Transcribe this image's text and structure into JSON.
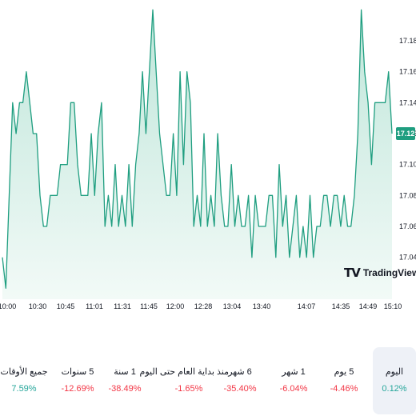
{
  "chart_data": {
    "type": "area",
    "title": "",
    "xlabel": "",
    "ylabel": "",
    "ylim": [
      17.015,
      17.195
    ],
    "current_price": "17.12",
    "y_ticks": [
      "17.18",
      "17.16",
      "17.14",
      "17.12",
      "17.10",
      "17.08",
      "17.06",
      "17.04"
    ],
    "x_ticks": [
      "10:00",
      "10:30",
      "10:45",
      "11:01",
      "11:31",
      "11:45",
      "12:00",
      "12:28",
      "13:04",
      "13:40",
      "14:07",
      "14:35",
      "14:49",
      "15:10"
    ],
    "values": [
      17.04,
      17.02,
      17.08,
      17.14,
      17.12,
      17.14,
      17.14,
      17.16,
      17.14,
      17.12,
      17.12,
      17.08,
      17.06,
      17.06,
      17.08,
      17.08,
      17.08,
      17.1,
      17.1,
      17.1,
      17.14,
      17.14,
      17.1,
      17.08,
      17.08,
      17.08,
      17.12,
      17.08,
      17.12,
      17.14,
      17.06,
      17.08,
      17.06,
      17.1,
      17.06,
      17.08,
      17.06,
      17.1,
      17.06,
      17.1,
      17.12,
      17.16,
      17.12,
      17.16,
      17.2,
      17.16,
      17.12,
      17.1,
      17.08,
      17.08,
      17.12,
      17.08,
      17.16,
      17.1,
      17.16,
      17.14,
      17.06,
      17.08,
      17.06,
      17.12,
      17.06,
      17.08,
      17.06,
      17.12,
      17.08,
      17.06,
      17.06,
      17.1,
      17.06,
      17.08,
      17.06,
      17.06,
      17.08,
      17.04,
      17.08,
      17.06,
      17.06,
      17.06,
      17.08,
      17.08,
      17.04,
      17.1,
      17.06,
      17.08,
      17.04,
      17.06,
      17.08,
      17.04,
      17.06,
      17.04,
      17.08,
      17.04,
      17.06,
      17.06,
      17.08,
      17.08,
      17.06,
      17.08,
      17.08,
      17.06,
      17.08,
      17.06,
      17.06,
      17.08,
      17.12,
      17.2,
      17.16,
      17.14,
      17.1,
      17.14,
      17.14,
      17.14,
      17.14,
      17.16,
      17.12
    ],
    "watermark": "TradingView",
    "colors": {
      "line": "#1f9e80",
      "area_top": "#bfe6da",
      "area_bottom": "#f2faf7",
      "badge": "#1f9e80"
    }
  },
  "periods": [
    {
      "label": "اليوم",
      "value": "0.12%",
      "color": "#26a69a",
      "active": true
    },
    {
      "label": "5 يوم",
      "value": "4.46%-",
      "color": "#f23645",
      "active": false
    },
    {
      "label": "1 شهر",
      "value": "6.04%-",
      "color": "#f23645",
      "active": false
    },
    {
      "label": "6 شهر",
      "value": "35.40%-",
      "color": "#f23645",
      "active": false
    },
    {
      "label": "منذ بداية العام حتى اليوم",
      "value": "1.65%-",
      "color": "#f23645",
      "active": false
    },
    {
      "label": "1 سنة",
      "value": "38.49%-",
      "color": "#f23645",
      "active": false
    },
    {
      "label": "5 سنوات",
      "value": "12.69%-",
      "color": "#f23645",
      "active": false
    },
    {
      "label": "جميع الأوقات",
      "value": "7.59%",
      "color": "#26a69a",
      "active": false
    }
  ]
}
